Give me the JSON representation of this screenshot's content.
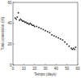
{
  "chart_data": {
    "type": "scatter",
    "x_label": "Tempo (days)",
    "y_label": "Total conversion (%)",
    "x": [
      2,
      3,
      4,
      5,
      6,
      7,
      8,
      9,
      10,
      11,
      12,
      13,
      14,
      15,
      16,
      17,
      18,
      19,
      20,
      22,
      24,
      26,
      28,
      30,
      32,
      34,
      36,
      38,
      40,
      42,
      44,
      46,
      48,
      50,
      52,
      54,
      55,
      56,
      57,
      58
    ],
    "values": [
      45,
      44,
      46,
      50,
      43,
      44,
      43,
      42,
      42,
      41,
      41,
      40,
      40,
      39,
      40,
      39,
      38,
      38,
      37,
      37,
      36,
      35,
      34,
      33,
      32,
      31,
      29,
      28,
      27,
      26,
      25,
      24,
      22,
      20,
      18,
      16,
      15,
      16,
      15,
      17
    ],
    "color": "#222222",
    "marker": "square",
    "xlim": [
      0,
      60
    ],
    "xticks": [
      0,
      10,
      20,
      30,
      40,
      50,
      60
    ],
    "ylim": [
      0,
      60
    ],
    "yticks": [
      0,
      20,
      40,
      60
    ],
    "grid": false
  }
}
